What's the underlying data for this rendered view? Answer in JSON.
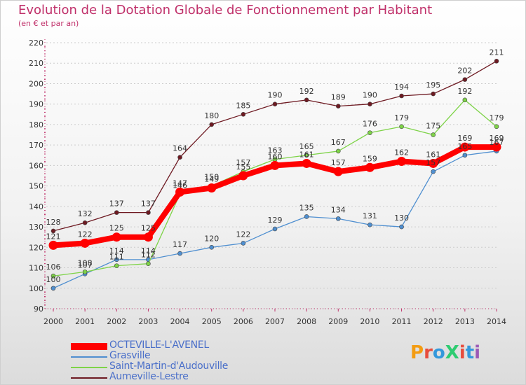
{
  "header": {
    "title": "Evolution de la Dotation Globale de Fonctionnement par Habitant",
    "subtitle": "(en € et par an)"
  },
  "logo": {
    "text": "ProXiti",
    "colors": [
      "#f39c12",
      "#e74c3c",
      "#3498db",
      "#2ecc71",
      "#e74c3c",
      "#3498db",
      "#9b59b6"
    ]
  },
  "chart_data": {
    "type": "line",
    "title": "Evolution de la Dotation Globale de Fonctionnement par Habitant",
    "subtitle": "(en € et par an)",
    "xlabel": "",
    "ylabel": "",
    "x": [
      "2000",
      "2001",
      "2002",
      "2003",
      "2004",
      "2005",
      "2006",
      "2007",
      "2008",
      "2009",
      "2010",
      "2011",
      "2012",
      "2013",
      "2014"
    ],
    "yticks": [
      "90",
      "100",
      "110",
      "120",
      "130",
      "140",
      "150",
      "160",
      "170",
      "180",
      "190",
      "200",
      "210",
      "220"
    ],
    "ylim": [
      90,
      220
    ],
    "grid": "horizontal dashed",
    "legend_position": "bottom-left",
    "series": [
      {
        "name": "OCTEVILLE-L'AVENEL",
        "color": "#ff0000",
        "emphasis": true,
        "values": [
          121,
          122,
          125,
          125,
          147,
          149,
          155,
          160,
          161,
          157,
          159,
          162,
          161,
          169,
          169
        ],
        "labels": [
          "121",
          "122",
          "125",
          "125",
          "147",
          "149",
          "155",
          "160",
          "161",
          "157",
          "159",
          "162",
          "161",
          "169",
          "169"
        ]
      },
      {
        "name": "Grasville",
        "color": "#4f8fd0",
        "emphasis": false,
        "values": [
          100,
          107,
          114,
          114,
          117,
          120,
          122,
          129,
          135,
          134,
          131,
          130,
          157,
          165,
          167
        ],
        "labels": [
          "100",
          "107",
          "114",
          "114",
          "117",
          "120",
          "122",
          "129",
          "135",
          "134",
          "131",
          "130",
          "157",
          "165",
          "167"
        ]
      },
      {
        "name": "Saint-Martin-d'Audouville",
        "color": "#7ed348",
        "emphasis": false,
        "values": [
          106,
          108,
          111,
          112,
          146,
          150,
          157,
          163,
          165,
          167,
          176,
          179,
          175,
          192,
          179
        ],
        "labels": [
          "106",
          "108",
          "111",
          "112",
          "146",
          "150",
          "157",
          "163",
          "165",
          "167",
          "176",
          "179",
          "175",
          "192",
          "179"
        ]
      },
      {
        "name": "Aumeville-Lestre",
        "color": "#6e1a22",
        "emphasis": false,
        "values": [
          128,
          132,
          137,
          137,
          164,
          180,
          185,
          190,
          192,
          189,
          190,
          194,
          195,
          202,
          211
        ],
        "labels": [
          "128",
          "132",
          "137",
          "137",
          "164",
          "180",
          "185",
          "190",
          "192",
          "189",
          "190",
          "194",
          "195",
          "202",
          "211"
        ]
      }
    ]
  }
}
